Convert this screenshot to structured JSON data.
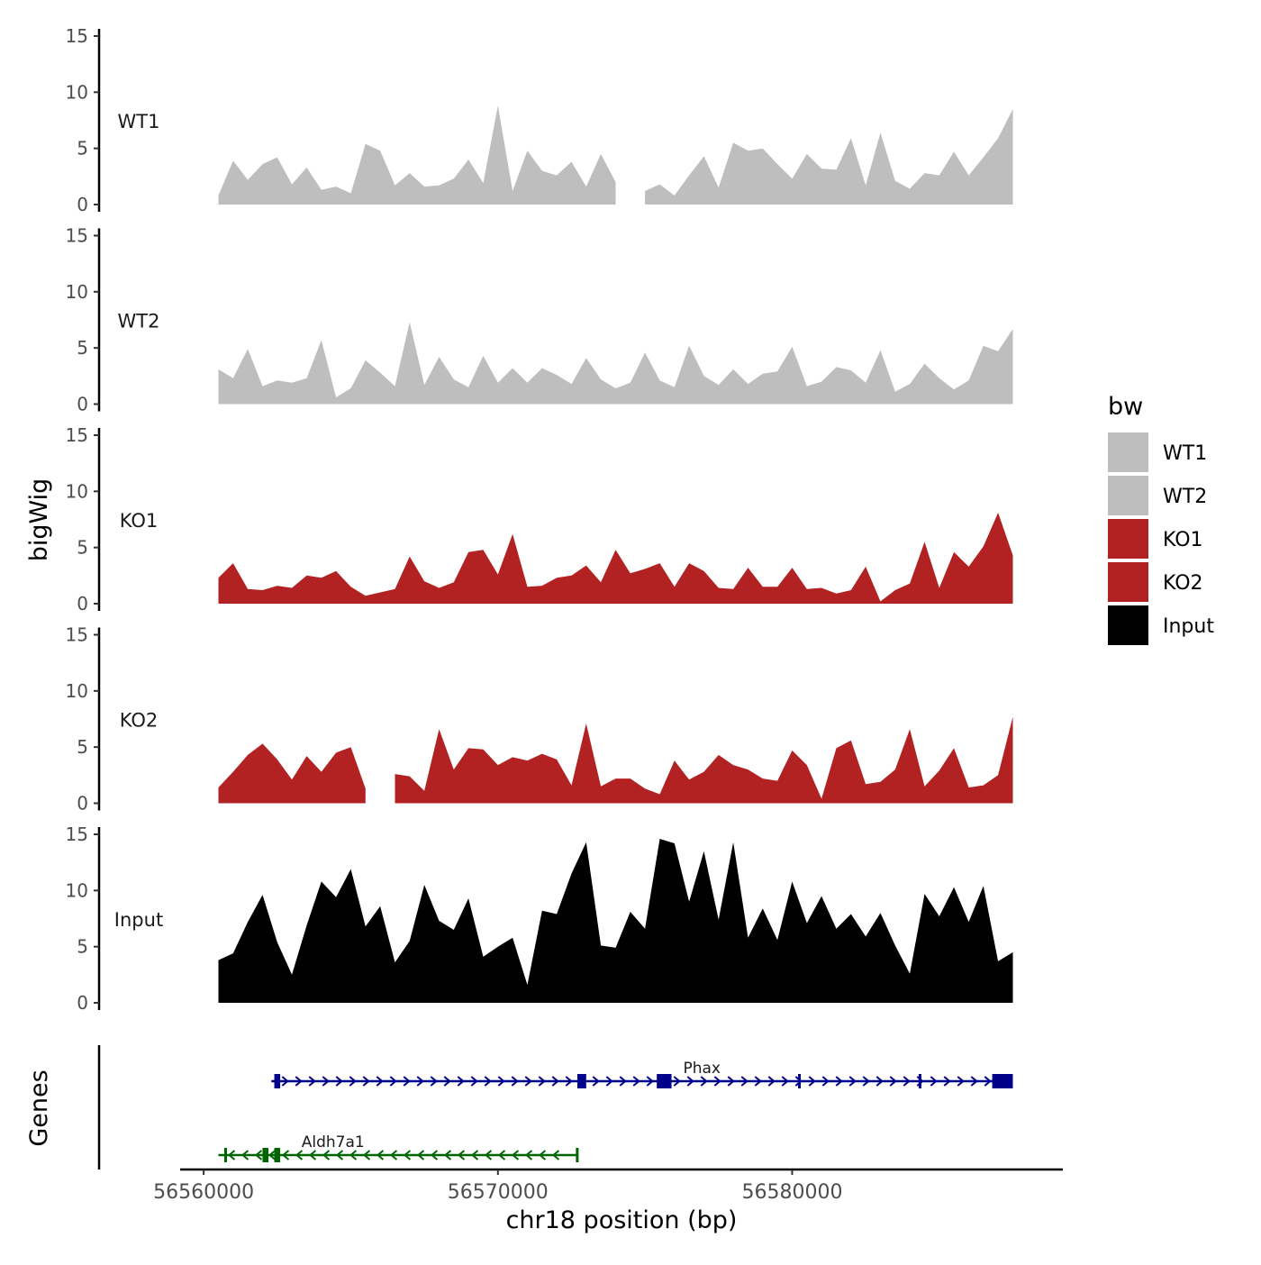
{
  "chart_data": {
    "type": "area",
    "title": "",
    "xlabel": "chr18 position (bp)",
    "ylabel": "bigWig",
    "genes_axis_label": "Genes",
    "xlim": [
      56559200,
      56589200
    ],
    "x_ticks": [
      {
        "value": 56560000,
        "label": "56560000"
      },
      {
        "value": 56570000,
        "label": "56570000"
      },
      {
        "value": 56580000,
        "label": "56580000"
      }
    ],
    "ylim": [
      0,
      15
    ],
    "y_ticks": [
      {
        "value": 0,
        "label": "0"
      },
      {
        "value": 5,
        "label": "5"
      },
      {
        "value": 10,
        "label": "10"
      },
      {
        "value": 15,
        "label": "15"
      }
    ],
    "legend": {
      "title": "bw",
      "position": "right",
      "entries": [
        {
          "label": "WT1",
          "color": "#bebebe"
        },
        {
          "label": "WT2",
          "color": "#bebebe"
        },
        {
          "label": "KO1",
          "color": "#b22222"
        },
        {
          "label": "KO2",
          "color": "#b22222"
        },
        {
          "label": "Input",
          "color": "#000000"
        }
      ]
    },
    "x": [
      56560500,
      56561000,
      56561500,
      56562000,
      56562500,
      56563000,
      56563500,
      56564000,
      56564500,
      56565000,
      56565500,
      56566000,
      56566500,
      56567000,
      56567500,
      56568000,
      56568500,
      56569000,
      56569500,
      56570000,
      56570500,
      56571000,
      56571500,
      56572000,
      56572500,
      56573000,
      56573500,
      56574000,
      56574500,
      56575000,
      56575500,
      56576000,
      56576500,
      56577000,
      56577500,
      56578000,
      56578500,
      56579000,
      56579500,
      56580000,
      56580500,
      56581000,
      56581500,
      56582000,
      56582500,
      56583000,
      56583500,
      56584000,
      56584500,
      56585000,
      56585500,
      56586000,
      56586500,
      56587000,
      56587500
    ],
    "series": [
      {
        "name": "WT1",
        "color": "#bebebe",
        "values": [
          0.8,
          3.9,
          2.2,
          3.6,
          4.2,
          1.8,
          3.3,
          1.3,
          1.6,
          1.0,
          5.4,
          4.8,
          1.7,
          2.8,
          1.6,
          1.7,
          2.3,
          4.0,
          1.9,
          8.8,
          1.2,
          4.8,
          3.0,
          2.6,
          3.8,
          1.6,
          4.5,
          2.0,
          null,
          1.2,
          1.8,
          0.8,
          2.6,
          4.3,
          1.5,
          5.5,
          4.8,
          5.0,
          3.6,
          2.3,
          4.5,
          3.2,
          3.1,
          5.9,
          1.7,
          6.4,
          2.1,
          1.4,
          2.8,
          2.6,
          4.7,
          2.6,
          4.2,
          5.9,
          8.5
        ]
      },
      {
        "name": "WT2",
        "color": "#bebebe",
        "values": [
          3.1,
          2.3,
          4.9,
          1.6,
          2.1,
          1.9,
          2.3,
          5.7,
          0.6,
          1.4,
          3.9,
          2.8,
          1.6,
          7.3,
          1.7,
          4.2,
          2.2,
          1.5,
          4.3,
          1.9,
          3.2,
          1.9,
          3.2,
          2.6,
          1.8,
          4.1,
          2.2,
          1.4,
          1.9,
          4.6,
          2.1,
          1.5,
          5.2,
          2.5,
          1.7,
          3.1,
          1.8,
          2.7,
          2.9,
          5.1,
          1.6,
          2.0,
          3.3,
          3.0,
          1.9,
          4.8,
          1.1,
          1.8,
          3.6,
          2.3,
          1.3,
          2.1,
          5.2,
          4.7,
          6.7
        ]
      },
      {
        "name": "KO1",
        "color": "#b22222",
        "values": [
          2.3,
          3.6,
          1.3,
          1.2,
          1.6,
          1.4,
          2.5,
          2.3,
          2.9,
          1.5,
          0.7,
          1.0,
          1.3,
          4.2,
          2.0,
          1.4,
          1.9,
          4.6,
          4.8,
          2.6,
          6.2,
          1.5,
          1.6,
          2.3,
          2.5,
          3.4,
          1.9,
          4.8,
          2.7,
          3.1,
          3.6,
          1.5,
          3.6,
          2.9,
          1.4,
          1.3,
          3.2,
          1.5,
          1.5,
          3.2,
          1.3,
          1.4,
          0.9,
          1.2,
          3.3,
          0.2,
          1.2,
          1.8,
          5.5,
          1.4,
          4.6,
          3.3,
          5.1,
          8.1,
          4.3
        ]
      },
      {
        "name": "KO2",
        "color": "#b22222",
        "values": [
          1.4,
          2.8,
          4.3,
          5.3,
          3.9,
          2.1,
          4.2,
          2.8,
          4.5,
          5.0,
          1.3,
          null,
          2.6,
          2.4,
          1.1,
          6.6,
          3.0,
          4.9,
          4.8,
          3.4,
          4.1,
          3.8,
          4.4,
          3.9,
          1.6,
          7.1,
          1.5,
          2.2,
          2.2,
          1.3,
          0.8,
          3.8,
          2.1,
          2.8,
          4.3,
          3.4,
          3.0,
          2.2,
          2.0,
          4.7,
          3.4,
          0.4,
          4.9,
          5.6,
          1.7,
          1.9,
          3.0,
          6.6,
          1.5,
          2.9,
          4.9,
          1.4,
          1.6,
          2.5,
          7.7
        ]
      },
      {
        "name": "Input",
        "color": "#000000",
        "values": [
          3.8,
          4.4,
          7.2,
          9.6,
          5.4,
          2.5,
          6.9,
          10.8,
          9.4,
          11.9,
          6.8,
          8.6,
          3.6,
          5.5,
          10.5,
          7.3,
          6.5,
          9.3,
          4.1,
          5.0,
          5.8,
          1.6,
          8.2,
          7.9,
          11.5,
          14.3,
          5.1,
          4.9,
          8.1,
          6.6,
          14.6,
          14.2,
          9.0,
          13.5,
          7.4,
          14.3,
          5.8,
          8.4,
          5.6,
          10.8,
          7.1,
          9.5,
          6.6,
          7.9,
          5.9,
          8.0,
          5.1,
          2.6,
          9.7,
          7.7,
          10.3,
          7.2,
          10.4,
          3.7,
          4.5
        ]
      }
    ],
    "genes": [
      {
        "name": "Phax",
        "strand": "+",
        "color": "#00008b",
        "start": 56562300,
        "end": 56587400,
        "exons": [
          [
            56562400,
            56562600
          ],
          [
            56572700,
            56573000
          ],
          [
            56575400,
            56575900
          ],
          [
            56580200,
            56580250
          ],
          [
            56584300,
            56584350
          ],
          [
            56586800,
            56587500
          ]
        ]
      },
      {
        "name": "Aldh7a1",
        "strand": "-",
        "color": "#006400",
        "start": 56560500,
        "end": 56572700,
        "exons": [
          [
            56560700,
            56560750
          ],
          [
            56562000,
            56562200
          ],
          [
            56562400,
            56562600
          ],
          [
            56572650,
            56572700
          ]
        ]
      }
    ]
  }
}
